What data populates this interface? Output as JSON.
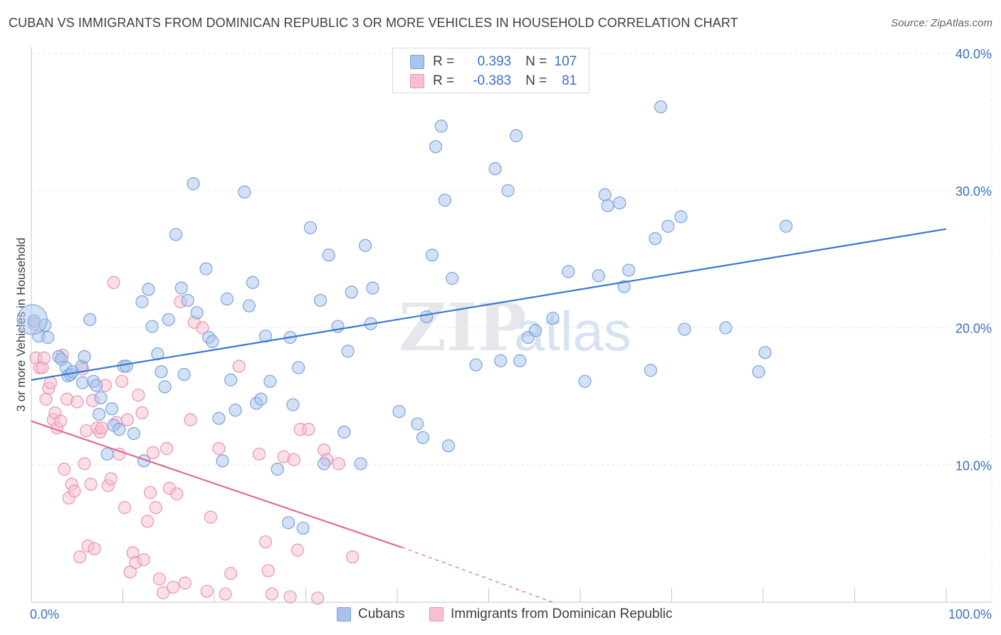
{
  "title": "CUBAN VS IMMIGRANTS FROM DOMINICAN REPUBLIC 3 OR MORE VEHICLES IN HOUSEHOLD CORRELATION CHART",
  "source": "Source: ZipAtlas.com",
  "watermark": {
    "zip": "ZIP",
    "atlas": "atlas"
  },
  "legend": {
    "rows": [
      {
        "r_label": "R =",
        "r_value": "0.393",
        "n_label": "N =",
        "n_value": "107",
        "color": "#a8c4ec",
        "border": "#7ba3dc"
      },
      {
        "r_label": "R =",
        "r_value": "-0.383",
        "n_label": "N =",
        "n_value": "81",
        "color": "#f7bfd0",
        "border": "#e994b2"
      }
    ]
  },
  "bottom_legend": [
    {
      "label": "Cubans",
      "color": "#a8c4ec",
      "border": "#7ba3dc"
    },
    {
      "label": "Immigrants from Dominican Republic",
      "color": "#f7bfd0",
      "border": "#e994b2"
    }
  ],
  "chart_data": {
    "type": "scatter",
    "title": "CUBAN VS IMMIGRANTS FROM DOMINICAN REPUBLIC 3 OR MORE VEHICLES IN HOUSEHOLD CORRELATION CHART",
    "xlabel": "",
    "ylabel": "3 or more Vehicles in Household",
    "xlim": [
      0,
      100
    ],
    "ylim": [
      0,
      40
    ],
    "x_tick_labels": [
      "0.0%",
      "100.0%"
    ],
    "y_ticks": [
      10,
      20,
      30,
      40
    ],
    "y_tick_labels": [
      "10.0%",
      "20.0%",
      "30.0%",
      "40.0%"
    ],
    "grid": true,
    "series": [
      {
        "name": "Cubans",
        "color": "#a8c4ec",
        "stroke": "#7ba3dc",
        "line_color": "#3a78d0",
        "trend": {
          "x0": 0,
          "y0": 16.2,
          "x1": 100,
          "y1": 27.2
        },
        "points": [
          [
            0.3,
            20.5
          ],
          [
            0.8,
            19.4
          ],
          [
            1.5,
            20.2
          ],
          [
            1.8,
            19.3
          ],
          [
            3.0,
            17.9
          ],
          [
            3.3,
            17.7
          ],
          [
            3.8,
            17.1
          ],
          [
            4.0,
            16.5
          ],
          [
            4.3,
            16.6
          ],
          [
            4.5,
            16.8
          ],
          [
            5.5,
            17.2
          ],
          [
            5.6,
            16.0
          ],
          [
            5.8,
            17.9
          ],
          [
            6.4,
            20.6
          ],
          [
            6.8,
            16.1
          ],
          [
            7.1,
            15.8
          ],
          [
            7.4,
            13.7
          ],
          [
            7.6,
            14.9
          ],
          [
            8.3,
            10.8
          ],
          [
            8.8,
            14.1
          ],
          [
            9.0,
            12.9
          ],
          [
            9.6,
            12.6
          ],
          [
            10.1,
            17.2
          ],
          [
            10.4,
            17.2
          ],
          [
            11.2,
            12.3
          ],
          [
            12.1,
            21.9
          ],
          [
            12.3,
            10.3
          ],
          [
            12.8,
            22.8
          ],
          [
            13.2,
            20.1
          ],
          [
            13.8,
            18.1
          ],
          [
            14.2,
            16.8
          ],
          [
            14.6,
            15.7
          ],
          [
            15.0,
            20.6
          ],
          [
            15.8,
            26.8
          ],
          [
            16.4,
            22.9
          ],
          [
            16.7,
            16.6
          ],
          [
            17.1,
            22.0
          ],
          [
            17.7,
            30.5
          ],
          [
            18.1,
            21.1
          ],
          [
            19.1,
            24.3
          ],
          [
            19.4,
            19.3
          ],
          [
            19.8,
            19.0
          ],
          [
            20.5,
            13.4
          ],
          [
            20.9,
            10.3
          ],
          [
            21.4,
            22.1
          ],
          [
            21.8,
            16.2
          ],
          [
            22.3,
            14.0
          ],
          [
            23.3,
            29.9
          ],
          [
            23.8,
            21.6
          ],
          [
            24.2,
            23.3
          ],
          [
            24.6,
            14.5
          ],
          [
            25.1,
            14.8
          ],
          [
            25.6,
            19.4
          ],
          [
            26.1,
            16.1
          ],
          [
            26.9,
            9.7
          ],
          [
            28.1,
            5.8
          ],
          [
            28.3,
            19.3
          ],
          [
            28.6,
            14.4
          ],
          [
            29.2,
            17.1
          ],
          [
            29.7,
            5.4
          ],
          [
            30.5,
            27.3
          ],
          [
            31.6,
            22.0
          ],
          [
            32.0,
            10.1
          ],
          [
            32.5,
            25.3
          ],
          [
            33.5,
            20.1
          ],
          [
            34.2,
            12.4
          ],
          [
            34.6,
            18.3
          ],
          [
            35.0,
            22.6
          ],
          [
            36.0,
            10.1
          ],
          [
            36.5,
            26.0
          ],
          [
            37.1,
            20.3
          ],
          [
            37.3,
            22.9
          ],
          [
            40.2,
            13.9
          ],
          [
            42.2,
            13.0
          ],
          [
            42.8,
            12.0
          ],
          [
            43.2,
            20.8
          ],
          [
            43.8,
            25.3
          ],
          [
            44.2,
            33.2
          ],
          [
            44.8,
            34.7
          ],
          [
            45.2,
            29.3
          ],
          [
            45.6,
            11.4
          ],
          [
            46.0,
            23.6
          ],
          [
            48.6,
            17.3
          ],
          [
            50.7,
            31.6
          ],
          [
            51.3,
            17.6
          ],
          [
            52.1,
            30.0
          ],
          [
            53.0,
            34.0
          ],
          [
            53.4,
            17.6
          ],
          [
            54.3,
            19.3
          ],
          [
            55.1,
            19.8
          ],
          [
            57.0,
            20.7
          ],
          [
            58.7,
            24.1
          ],
          [
            60.5,
            16.1
          ],
          [
            62.0,
            23.8
          ],
          [
            62.7,
            29.7
          ],
          [
            63.0,
            28.9
          ],
          [
            64.3,
            29.1
          ],
          [
            64.8,
            23.0
          ],
          [
            65.3,
            24.2
          ],
          [
            67.7,
            16.9
          ],
          [
            68.2,
            26.5
          ],
          [
            68.8,
            36.1
          ],
          [
            69.6,
            27.4
          ],
          [
            71.0,
            28.1
          ],
          [
            71.4,
            19.9
          ],
          [
            75.9,
            20.0
          ],
          [
            79.5,
            16.8
          ],
          [
            80.2,
            18.2
          ],
          [
            82.5,
            27.4
          ]
        ]
      },
      {
        "name": "Immigrants from Dominican Republic",
        "color": "#f7bfd0",
        "stroke": "#e994b2",
        "line_color": "#e06a93",
        "trend": {
          "x0": 0,
          "y0": 13.2,
          "x1": 40.5,
          "y1": 4.0,
          "dash_to_x": 57,
          "dash_to_y": 0
        },
        "points": [
          [
            0.3,
            20.3
          ],
          [
            0.5,
            17.8
          ],
          [
            0.9,
            17.1
          ],
          [
            1.2,
            17.1
          ],
          [
            1.4,
            17.8
          ],
          [
            1.6,
            14.8
          ],
          [
            1.9,
            15.6
          ],
          [
            2.1,
            16.0
          ],
          [
            2.4,
            13.3
          ],
          [
            2.6,
            13.8
          ],
          [
            2.8,
            12.7
          ],
          [
            3.2,
            13.2
          ],
          [
            3.4,
            18.0
          ],
          [
            3.6,
            9.7
          ],
          [
            3.9,
            14.8
          ],
          [
            4.1,
            7.6
          ],
          [
            4.4,
            8.6
          ],
          [
            4.7,
            8.1
          ],
          [
            5.0,
            14.6
          ],
          [
            5.3,
            3.3
          ],
          [
            5.6,
            17.0
          ],
          [
            5.8,
            10.1
          ],
          [
            6.0,
            12.5
          ],
          [
            6.2,
            4.1
          ],
          [
            6.5,
            8.6
          ],
          [
            6.7,
            14.7
          ],
          [
            6.9,
            3.9
          ],
          [
            7.2,
            12.7
          ],
          [
            7.5,
            12.4
          ],
          [
            7.7,
            12.7
          ],
          [
            8.1,
            15.8
          ],
          [
            8.4,
            8.5
          ],
          [
            8.7,
            9.0
          ],
          [
            9.0,
            23.3
          ],
          [
            9.3,
            13.1
          ],
          [
            9.6,
            10.8
          ],
          [
            9.9,
            16.1
          ],
          [
            10.2,
            6.9
          ],
          [
            10.5,
            13.3
          ],
          [
            10.8,
            2.2
          ],
          [
            11.1,
            3.6
          ],
          [
            11.4,
            2.9
          ],
          [
            11.7,
            15.1
          ],
          [
            12.1,
            13.8
          ],
          [
            12.3,
            3.1
          ],
          [
            12.7,
            5.9
          ],
          [
            13.0,
            8.0
          ],
          [
            13.3,
            10.9
          ],
          [
            13.6,
            6.9
          ],
          [
            14.0,
            1.7
          ],
          [
            14.4,
            0.7
          ],
          [
            14.8,
            11.2
          ],
          [
            15.1,
            8.3
          ],
          [
            15.5,
            1.1
          ],
          [
            15.9,
            7.9
          ],
          [
            16.3,
            21.9
          ],
          [
            16.8,
            1.4
          ],
          [
            17.4,
            13.3
          ],
          [
            17.8,
            20.4
          ],
          [
            18.7,
            20.0
          ],
          [
            19.2,
            0.8
          ],
          [
            19.6,
            6.2
          ],
          [
            20.5,
            11.2
          ],
          [
            21.2,
            0.6
          ],
          [
            21.8,
            2.1
          ],
          [
            22.7,
            17.2
          ],
          [
            24.9,
            10.8
          ],
          [
            25.6,
            4.4
          ],
          [
            25.9,
            2.3
          ],
          [
            26.3,
            0.6
          ],
          [
            27.6,
            10.6
          ],
          [
            28.3,
            0.4
          ],
          [
            28.7,
            10.4
          ],
          [
            29.1,
            3.8
          ],
          [
            29.4,
            12.6
          ],
          [
            30.3,
            12.6
          ],
          [
            31.3,
            0.3
          ],
          [
            32.0,
            11.1
          ],
          [
            32.3,
            10.4
          ],
          [
            33.6,
            10.1
          ],
          [
            35.1,
            3.3
          ]
        ]
      }
    ],
    "large_points": [
      {
        "series": "Cubans",
        "x": 0.1,
        "y": 20.6
      }
    ]
  }
}
